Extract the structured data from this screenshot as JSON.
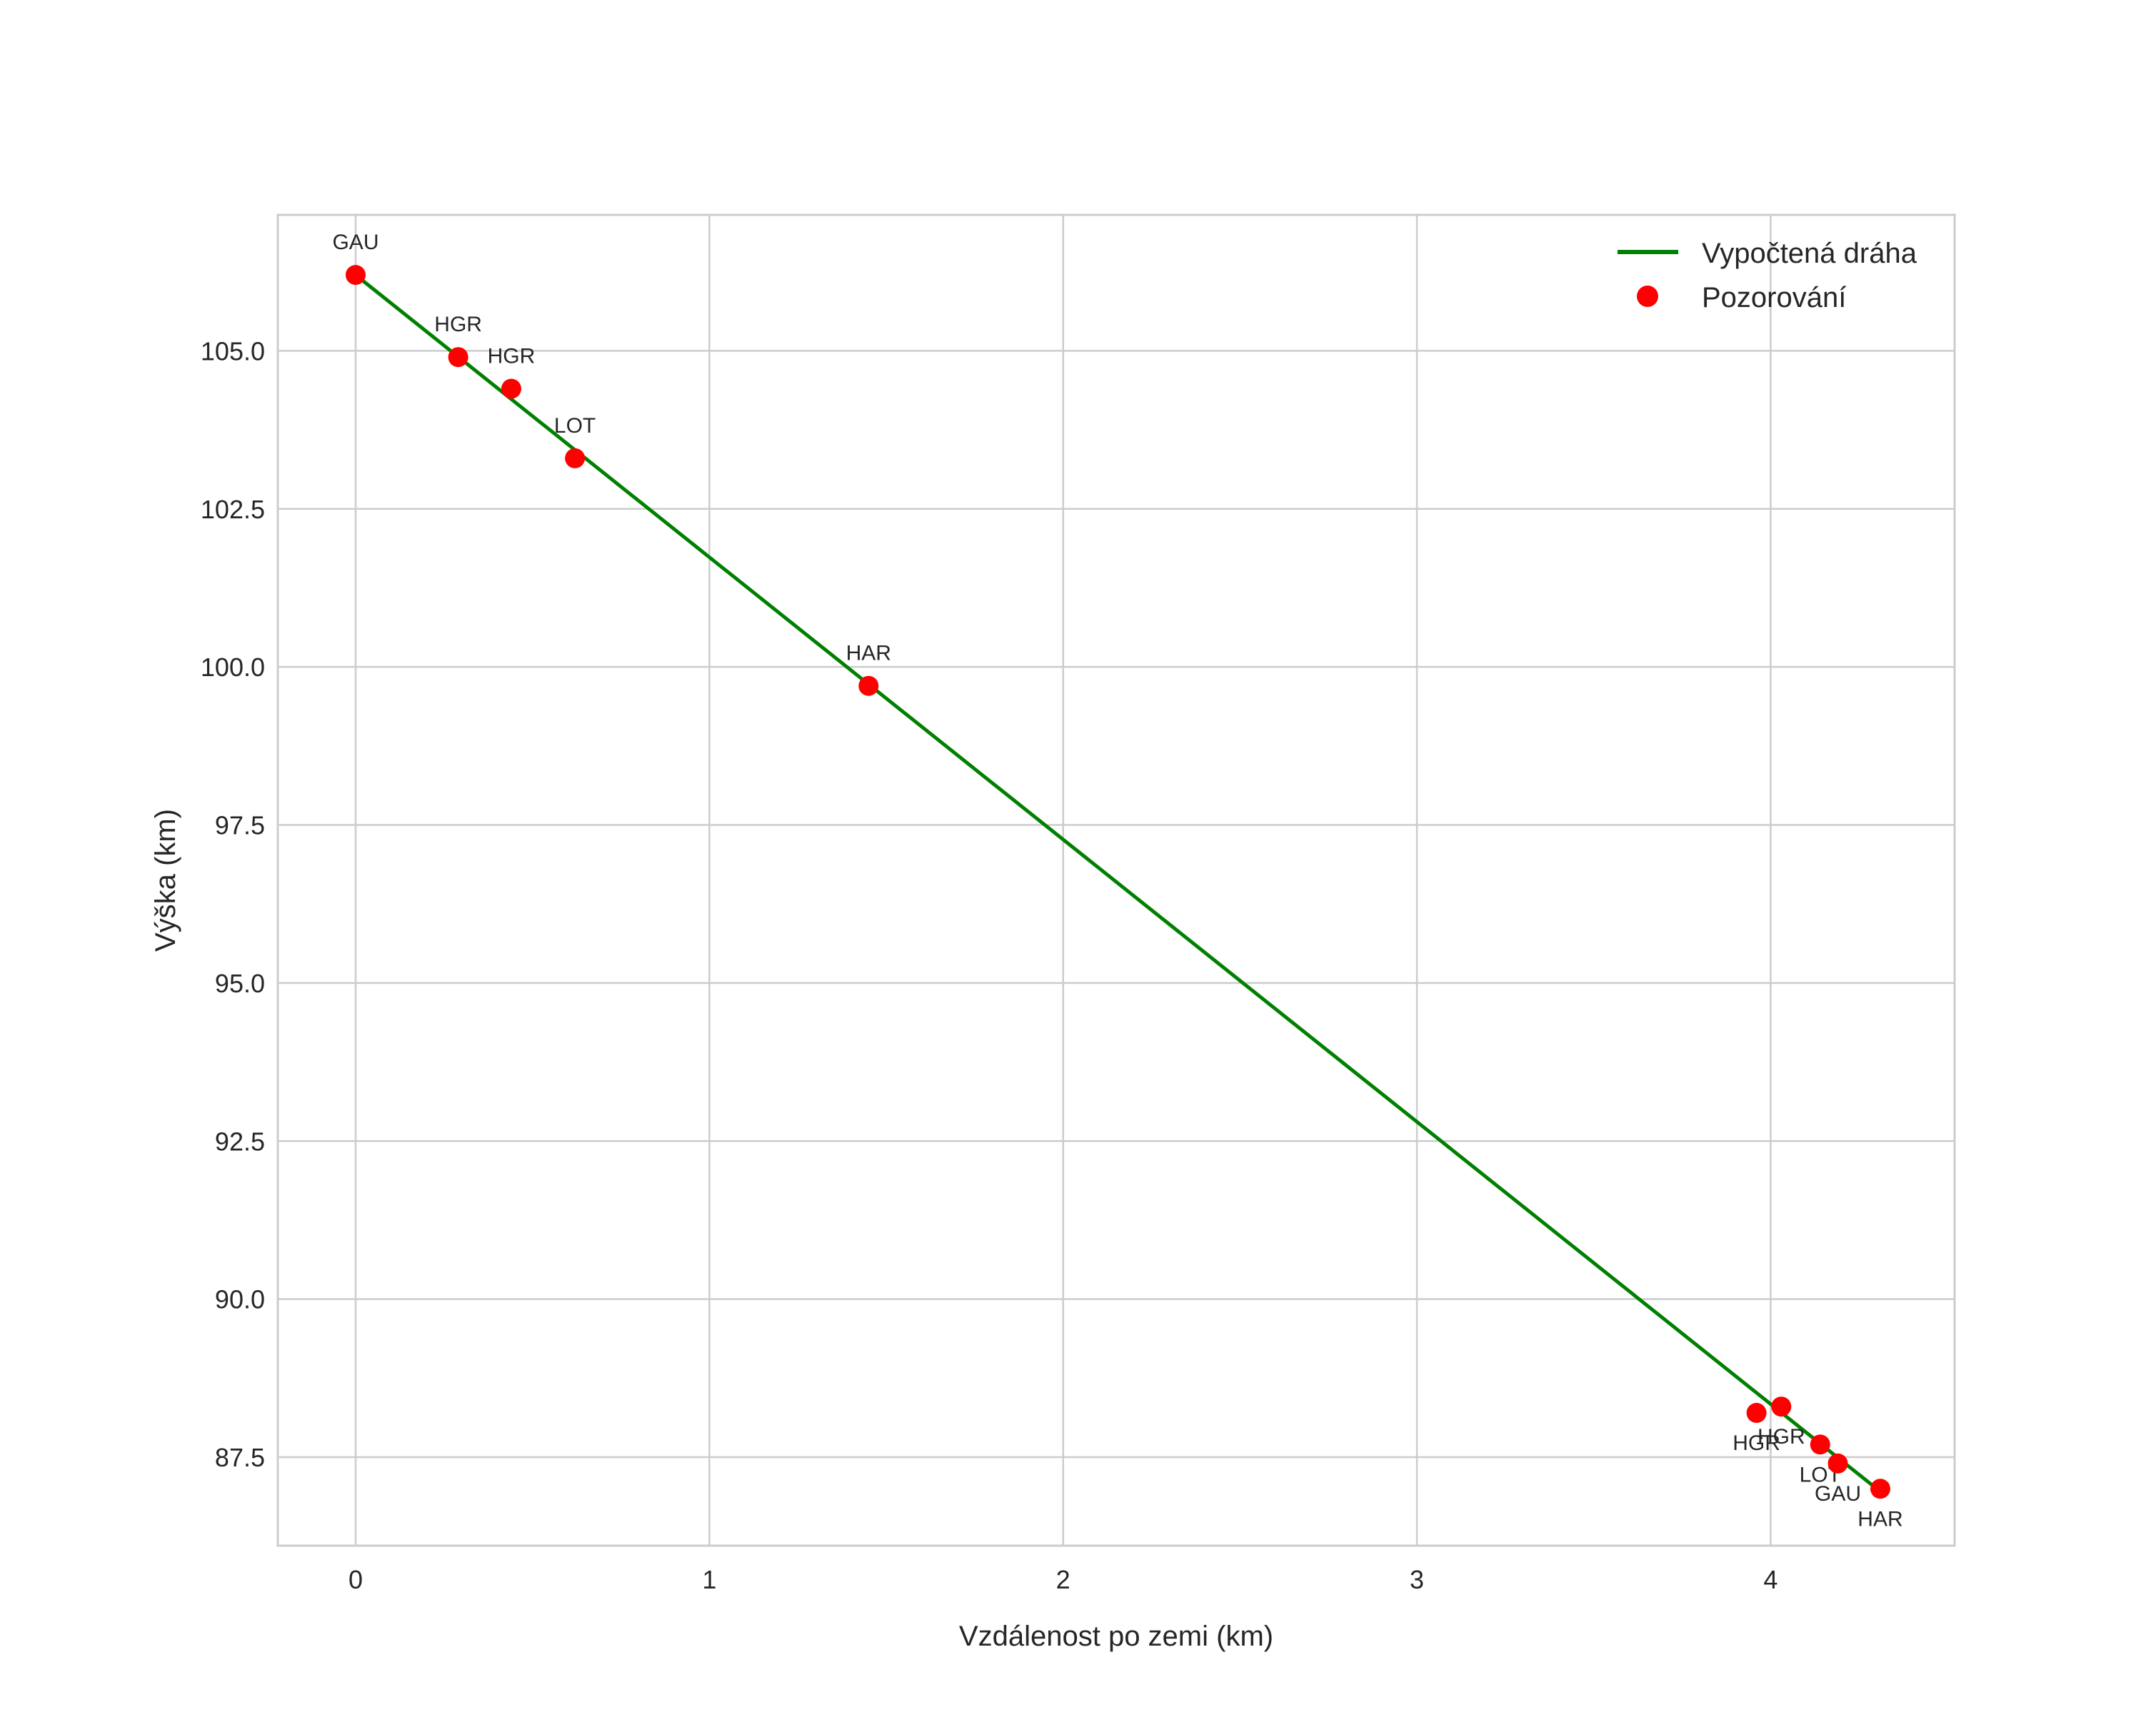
{
  "chart_data": {
    "type": "line",
    "title": "",
    "xlabel": "Vzdálenost po zemi (km)",
    "ylabel": "Výška (km)",
    "xlim": [
      -0.22,
      4.52
    ],
    "ylim": [
      86.1,
      107.15
    ],
    "xticks": [
      0,
      1,
      2,
      3,
      4
    ],
    "xtick_labels": [
      "0",
      "1",
      "2",
      "3",
      "4"
    ],
    "yticks": [
      87.5,
      90.0,
      92.5,
      95.0,
      97.5,
      100.0,
      102.5,
      105.0
    ],
    "ytick_labels": [
      "87.5",
      "90.0",
      "92.5",
      "95.0",
      "97.5",
      "100.0",
      "102.5",
      "105.0"
    ],
    "grid": true,
    "legend_position": "upper right",
    "series": [
      {
        "name": "Vypočtená dráha",
        "kind": "line",
        "color": "#008000",
        "x": [
          0.0,
          4.3
        ],
        "y": [
          106.2,
          87.0
        ]
      },
      {
        "name": "Pozorování",
        "kind": "scatter",
        "color": "#ff0000",
        "points": [
          {
            "label": "GAU",
            "x": 0.0,
            "y": 106.2,
            "label_pos": "above"
          },
          {
            "label": "HGR",
            "x": 0.29,
            "y": 104.9,
            "label_pos": "above"
          },
          {
            "label": "HGR",
            "x": 0.44,
            "y": 104.4,
            "label_pos": "above"
          },
          {
            "label": "LOT",
            "x": 0.62,
            "y": 103.3,
            "label_pos": "above"
          },
          {
            "label": "HAR",
            "x": 1.45,
            "y": 99.7,
            "label_pos": "above"
          },
          {
            "label": "HGR",
            "x": 3.96,
            "y": 88.2,
            "label_pos": "below"
          },
          {
            "label": "HGR",
            "x": 4.03,
            "y": 88.3,
            "label_pos": "below"
          },
          {
            "label": "LOT",
            "x": 4.14,
            "y": 87.7,
            "label_pos": "below"
          },
          {
            "label": "GAU",
            "x": 4.19,
            "y": 87.4,
            "label_pos": "below"
          },
          {
            "label": "HAR",
            "x": 4.31,
            "y": 87.0,
            "label_pos": "below"
          }
        ]
      }
    ]
  },
  "legend": {
    "items": [
      {
        "label": "Vypočtená dráha",
        "type": "line",
        "color": "#008000"
      },
      {
        "label": "Pozorování",
        "type": "marker",
        "color": "#ff0000"
      }
    ]
  },
  "colors": {
    "grid": "#cccccc",
    "spine": "#cccccc",
    "text": "#262626",
    "line": "#008000",
    "marker": "#ff0000"
  }
}
